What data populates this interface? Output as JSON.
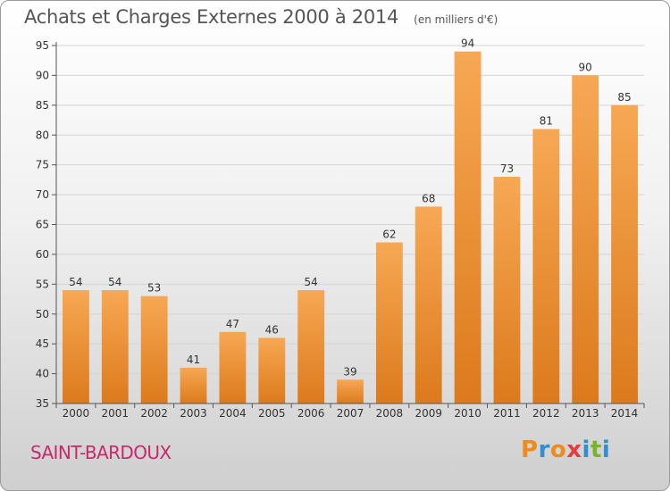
{
  "header": {
    "title": "Achats et Charges Externes 2000 à 2014",
    "unit": "(en milliers d'€)"
  },
  "footer": {
    "city": "SAINT-BARDOUX",
    "brand": "Proxiti"
  },
  "colors": {
    "bar_light": "#f7a854",
    "bar_dark": "#dc7a1c",
    "city_text": "#c8286c",
    "brand_letters": [
      "#f08a1c",
      "#2f8fd0",
      "#f08a1c",
      "#e83c3c",
      "#2f8fd0",
      "#78b42a",
      "#2f8fd0"
    ]
  },
  "chart_data": {
    "type": "bar",
    "title": "Achats et Charges Externes 2000 à 2014",
    "subtitle": "(en milliers d'€)",
    "categories": [
      "2000",
      "2001",
      "2002",
      "2003",
      "2004",
      "2005",
      "2006",
      "2007",
      "2008",
      "2009",
      "2010",
      "2011",
      "2012",
      "2013",
      "2014"
    ],
    "values": [
      54,
      54,
      53,
      41,
      47,
      46,
      54,
      39,
      62,
      68,
      94,
      73,
      81,
      90,
      85
    ],
    "ylim": [
      35,
      95
    ],
    "yticks": [
      35,
      40,
      45,
      50,
      55,
      60,
      65,
      70,
      75,
      80,
      85,
      90,
      95
    ],
    "grid": "horizontal",
    "data_labels": true
  }
}
